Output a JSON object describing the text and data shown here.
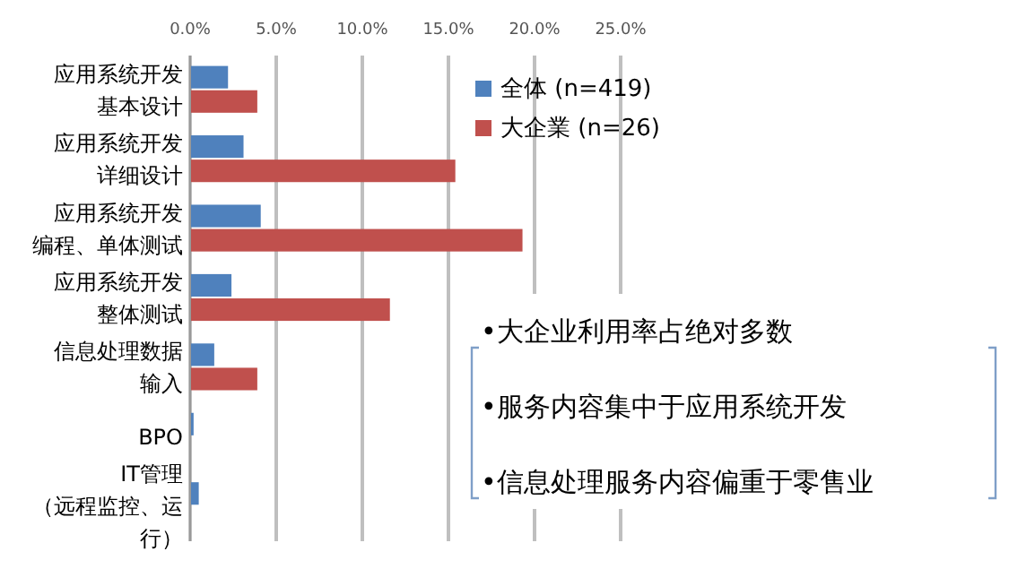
{
  "chart_data": {
    "type": "bar",
    "orientation": "horizontal",
    "categories": [
      "应用系统开发基本设计",
      "应用系统开发详细设计",
      "应用系统开发编程、单体测试",
      "应用系统开发整体测试",
      "信息处理数据输入",
      "BPO",
      "IT管理（远程监控、运行）"
    ],
    "series": [
      {
        "name": "全体 (n=419)",
        "color": "#4f81bd",
        "values": [
          2.2,
          3.1,
          4.1,
          2.4,
          1.4,
          0.2,
          0.5
        ]
      },
      {
        "name": "大企業 (n=26)",
        "color": "#c0504d",
        "values": [
          3.9,
          15.4,
          19.3,
          11.6,
          3.9,
          0,
          0
        ]
      }
    ],
    "xlim": [
      0,
      25
    ],
    "xticks": [
      {
        "value": 0,
        "label": "0.0%"
      },
      {
        "value": 5,
        "label": "5.0%"
      },
      {
        "value": 10,
        "label": "10.0%"
      },
      {
        "value": 15,
        "label": "15.0%"
      },
      {
        "value": 20,
        "label": "20.0%"
      },
      {
        "value": 25,
        "label": "25.0%"
      }
    ],
    "grid": "x",
    "legend": "top right",
    "annotations": [
      "•大企业利用率占绝对多数",
      "•服务内容集中于应用系统开发",
      "•信息处理服务内容偏重于零售业"
    ]
  }
}
